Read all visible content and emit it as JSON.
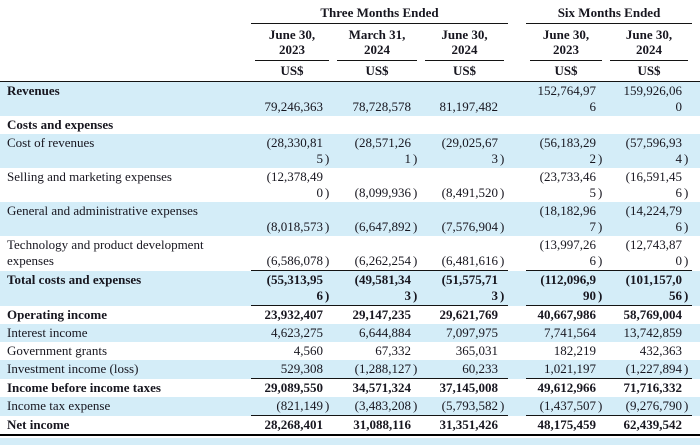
{
  "colors": {
    "row_shade": "#d4edf8",
    "text": "#17161f",
    "rule": "#141414"
  },
  "table": {
    "header": {
      "groups": [
        {
          "label": "Three Months Ended"
        },
        {
          "label": "Six Months Ended"
        }
      ],
      "columns": [
        {
          "period": "June 30,",
          "year": "2023",
          "currency": "US$"
        },
        {
          "period": "March 31,",
          "year": "2024",
          "currency": "US$"
        },
        {
          "period": "June 30,",
          "year": "2024",
          "currency": "US$"
        },
        {
          "period": "June 30,",
          "year": "2023",
          "currency": "US$"
        },
        {
          "period": "June 30,",
          "year": "2024",
          "currency": "US$"
        }
      ]
    },
    "rows": [
      {
        "label": "Revenues",
        "label_bold": true,
        "values_bold": false,
        "shaded": true,
        "rule_below": false,
        "cells": [
          "79,246,363",
          "78,728,578",
          "81,197,482",
          [
            "152,764,97",
            "6"
          ],
          [
            "159,926,06",
            "0"
          ]
        ]
      },
      {
        "label": "Costs and expenses",
        "label_bold": true,
        "values_bold": false,
        "shaded": false,
        "rule_below": false,
        "cells": [
          "",
          "",
          "",
          "",
          ""
        ]
      },
      {
        "label": "Cost of revenues",
        "label_bold": false,
        "values_bold": false,
        "shaded": true,
        "rule_below": false,
        "cells": [
          [
            "(28,330,81",
            "5)"
          ],
          [
            "(28,571,26",
            "1)"
          ],
          [
            "(29,025,67",
            "3)"
          ],
          [
            "(56,183,29",
            "2)"
          ],
          [
            "(57,596,93",
            "4)"
          ]
        ]
      },
      {
        "label": "Selling and marketing expenses",
        "label_bold": false,
        "values_bold": false,
        "shaded": false,
        "rule_below": false,
        "cells": [
          [
            "(12,378,49",
            "0)"
          ],
          "(8,099,936)",
          "(8,491,520)",
          [
            "(23,733,46",
            "5)"
          ],
          [
            "(16,591,45",
            "6)"
          ]
        ]
      },
      {
        "label": "General and administrative expenses",
        "label_bold": false,
        "values_bold": false,
        "shaded": true,
        "rule_below": false,
        "cells": [
          "(8,018,573)",
          "(6,647,892)",
          "(7,576,904)",
          [
            "(18,182,96",
            "7)"
          ],
          [
            "(14,224,79",
            "6)"
          ]
        ]
      },
      {
        "label": [
          "Technology and product development",
          "expenses"
        ],
        "label_bold": false,
        "values_bold": false,
        "shaded": false,
        "rule_below": true,
        "cells": [
          "(6,586,078)",
          "(6,262,254)",
          "(6,481,616)",
          [
            "(13,997,26",
            "6)"
          ],
          [
            "(12,743,87",
            "0)"
          ]
        ]
      },
      {
        "label": "Total costs and expenses",
        "label_bold": true,
        "values_bold": true,
        "shaded": true,
        "rule_below": true,
        "cells": [
          [
            "(55,313,95",
            "6)"
          ],
          [
            "(49,581,34",
            "3)"
          ],
          [
            "(51,575,71",
            "3)"
          ],
          [
            "(112,096,9",
            "90)"
          ],
          [
            "(101,157,0",
            "56)"
          ]
        ]
      },
      {
        "label": "Operating income",
        "label_bold": true,
        "values_bold": true,
        "shaded": false,
        "rule_below": false,
        "cells": [
          "23,932,407",
          "29,147,235",
          "29,621,769",
          "40,667,986",
          "58,769,004"
        ]
      },
      {
        "label": "Interest income",
        "label_bold": false,
        "values_bold": false,
        "shaded": true,
        "rule_below": false,
        "cells": [
          "4,623,275",
          "6,644,884",
          "7,097,975",
          "7,741,564",
          "13,742,859"
        ]
      },
      {
        "label": "Government grants",
        "label_bold": false,
        "values_bold": false,
        "shaded": false,
        "rule_below": false,
        "cells": [
          "4,560",
          "67,332",
          "365,031",
          "182,219",
          "432,363"
        ]
      },
      {
        "label": "Investment income (loss)",
        "label_bold": false,
        "values_bold": false,
        "shaded": true,
        "rule_below": true,
        "cells": [
          "529,308",
          "(1,288,127)",
          "60,233",
          "1,021,197",
          "(1,227,894)"
        ]
      },
      {
        "label": "Income before income taxes",
        "label_bold": true,
        "values_bold": true,
        "shaded": false,
        "rule_below": false,
        "cells": [
          "29,089,550",
          "34,571,324",
          "37,145,008",
          "49,612,966",
          "71,716,332"
        ]
      },
      {
        "label": "Income tax expense",
        "label_bold": false,
        "values_bold": false,
        "shaded": true,
        "rule_below": true,
        "cells": [
          "(821,149)",
          "(3,483,208)",
          "(5,793,582)",
          "(1,437,507)",
          "(9,276,790)"
        ]
      },
      {
        "label": "Net income",
        "label_bold": true,
        "values_bold": true,
        "shaded": false,
        "rule_below": false,
        "cells": [
          "28,268,401",
          "31,088,116",
          "31,351,426",
          "48,175,459",
          "62,439,542"
        ]
      }
    ]
  }
}
